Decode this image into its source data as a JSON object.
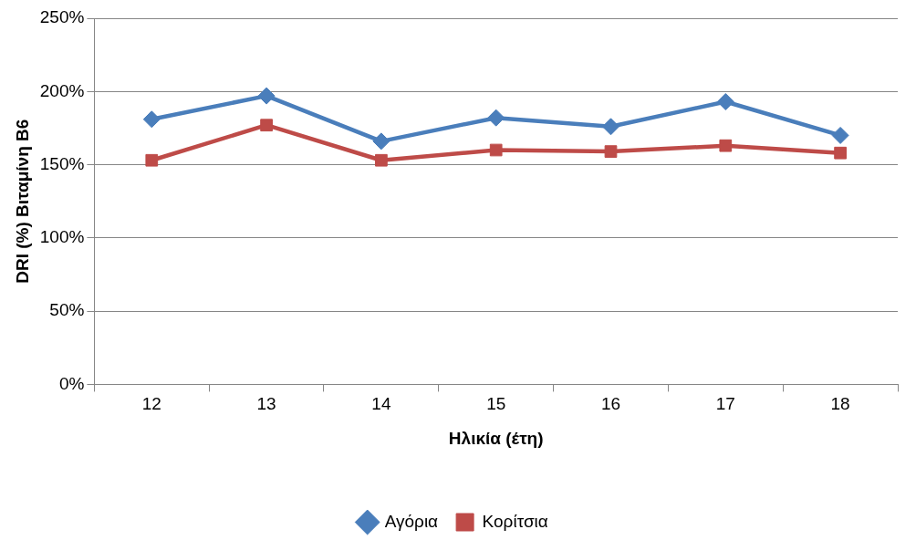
{
  "chart_data": {
    "type": "line",
    "xlabel": "Ηλικία (έτη)",
    "ylabel": "DRI (%) Βιταμίνη B6",
    "categories": [
      "12",
      "13",
      "14",
      "15",
      "16",
      "17",
      "18"
    ],
    "series": [
      {
        "name": "Αγόρια",
        "color": "#4a7ebb",
        "marker": "diamond",
        "values": [
          181,
          197,
          166,
          182,
          176,
          193,
          170
        ]
      },
      {
        "name": "Κορίτσια",
        "color": "#be4b48",
        "marker": "square",
        "values": [
          153,
          177,
          153,
          160,
          159,
          163,
          158
        ]
      }
    ],
    "ylim": [
      0,
      250
    ],
    "yticks": [
      {
        "value": 0,
        "label": "0%"
      },
      {
        "value": 50,
        "label": "50%"
      },
      {
        "value": 100,
        "label": "100%"
      },
      {
        "value": 150,
        "label": "150%"
      },
      {
        "value": 200,
        "label": "200%"
      },
      {
        "value": 250,
        "label": "250%"
      }
    ],
    "grid": "y",
    "legend": "bottom",
    "line_style": "solid"
  }
}
